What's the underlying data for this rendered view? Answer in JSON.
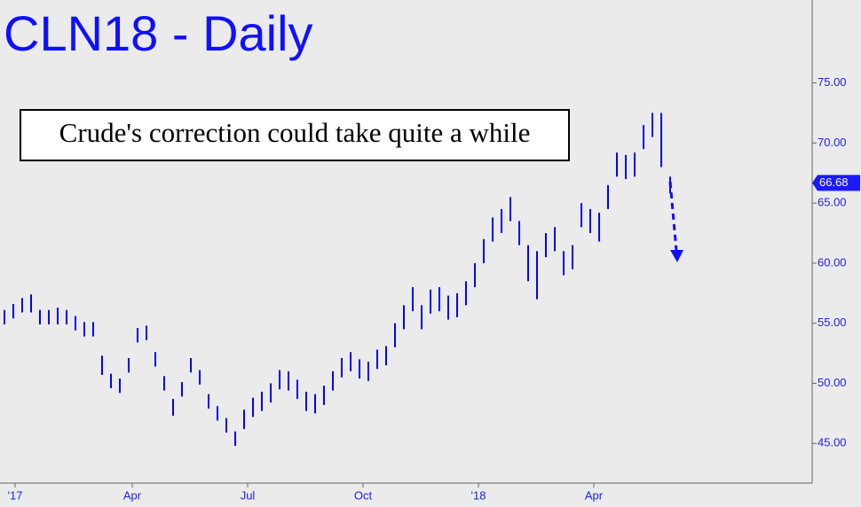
{
  "chart_data": {
    "type": "ohlc",
    "title": "CLN18 - Daily",
    "annotation": "Crude's correction could take quite a while",
    "x": [
      0,
      5,
      10,
      15,
      20,
      25,
      30,
      35,
      40,
      45,
      50,
      55,
      60,
      65,
      70,
      75,
      80,
      85,
      90,
      95,
      100,
      105,
      110,
      115,
      120,
      125,
      130,
      135,
      140,
      145,
      150,
      155,
      160,
      165,
      170,
      175,
      180,
      185,
      190,
      195,
      200,
      205,
      210,
      215,
      220,
      225,
      230,
      235,
      240,
      245,
      250,
      255,
      260,
      265,
      270,
      275,
      280,
      285,
      290,
      295,
      300,
      305,
      310,
      315,
      320,
      325,
      330,
      335,
      340,
      345,
      350,
      355,
      360,
      365,
      370,
      375
    ],
    "series": [
      {
        "color": "#0000ff",
        "high": [
          56.1,
          56.6,
          57.1,
          57.4,
          56.1,
          56.1,
          56.3,
          56.1,
          55.6,
          55.1,
          55.1,
          52.3,
          50.8,
          50.4,
          52.1,
          54.6,
          54.8,
          52.6,
          50.6,
          48.7,
          50.1,
          52.1,
          51.1,
          49.1,
          48.1,
          47.1,
          46.0,
          47.8,
          48.8,
          49.3,
          50.0,
          51.1,
          51.0,
          50.3,
          49.3,
          49.1,
          49.8,
          51.0,
          52.1,
          52.6,
          52.0,
          51.8,
          52.8,
          53.1,
          55.0,
          56.5,
          58.0,
          56.5,
          57.8,
          58.0,
          57.3,
          57.5,
          58.5,
          60.0,
          62.0,
          63.8,
          64.5,
          65.5,
          63.5,
          61.5,
          61.0,
          62.5,
          63.0,
          61.0,
          61.5,
          65.0,
          64.5,
          64.2,
          66.5,
          69.2,
          69.0,
          69.2,
          71.5,
          72.5,
          72.5,
          67.2
        ],
        "low": [
          54.9,
          55.4,
          55.9,
          55.9,
          54.9,
          54.9,
          54.9,
          54.9,
          54.4,
          53.9,
          53.9,
          50.7,
          49.6,
          49.2,
          50.9,
          53.4,
          53.6,
          51.4,
          49.4,
          47.3,
          48.9,
          50.9,
          49.9,
          47.9,
          46.9,
          45.9,
          44.8,
          46.2,
          47.2,
          47.7,
          48.4,
          49.5,
          49.4,
          48.7,
          47.7,
          47.5,
          48.2,
          49.4,
          50.5,
          51.0,
          50.4,
          50.2,
          51.2,
          51.5,
          53.0,
          54.5,
          56.0,
          54.5,
          55.8,
          56.0,
          55.3,
          55.5,
          56.5,
          58.0,
          60.0,
          61.8,
          62.5,
          63.5,
          61.5,
          58.5,
          57.0,
          60.5,
          61.0,
          59.0,
          59.5,
          63.0,
          62.5,
          61.8,
          64.5,
          67.2,
          67.0,
          67.2,
          69.5,
          70.5,
          68.0,
          65.8
        ]
      }
    ],
    "last_value": 66.68,
    "xlim": [
      -2.5,
      455
    ],
    "xticks": [
      {
        "value": 6,
        "label": "'17"
      },
      {
        "value": 72,
        "label": "Apr"
      },
      {
        "value": 137,
        "label": "Jul"
      },
      {
        "value": 202,
        "label": "Oct"
      },
      {
        "value": 267,
        "label": "'18"
      },
      {
        "value": 332,
        "label": "Apr"
      }
    ],
    "ylim": [
      41.7,
      81.9
    ],
    "yticks": [
      {
        "value": 45,
        "label": "45.00"
      },
      {
        "value": 50,
        "label": "50.00"
      },
      {
        "value": 55,
        "label": "55.00"
      },
      {
        "value": 60,
        "label": "60.00"
      },
      {
        "value": 65,
        "label": "65.00"
      },
      {
        "value": 70,
        "label": "70.00"
      },
      {
        "value": 75,
        "label": "75.00"
      }
    ]
  }
}
